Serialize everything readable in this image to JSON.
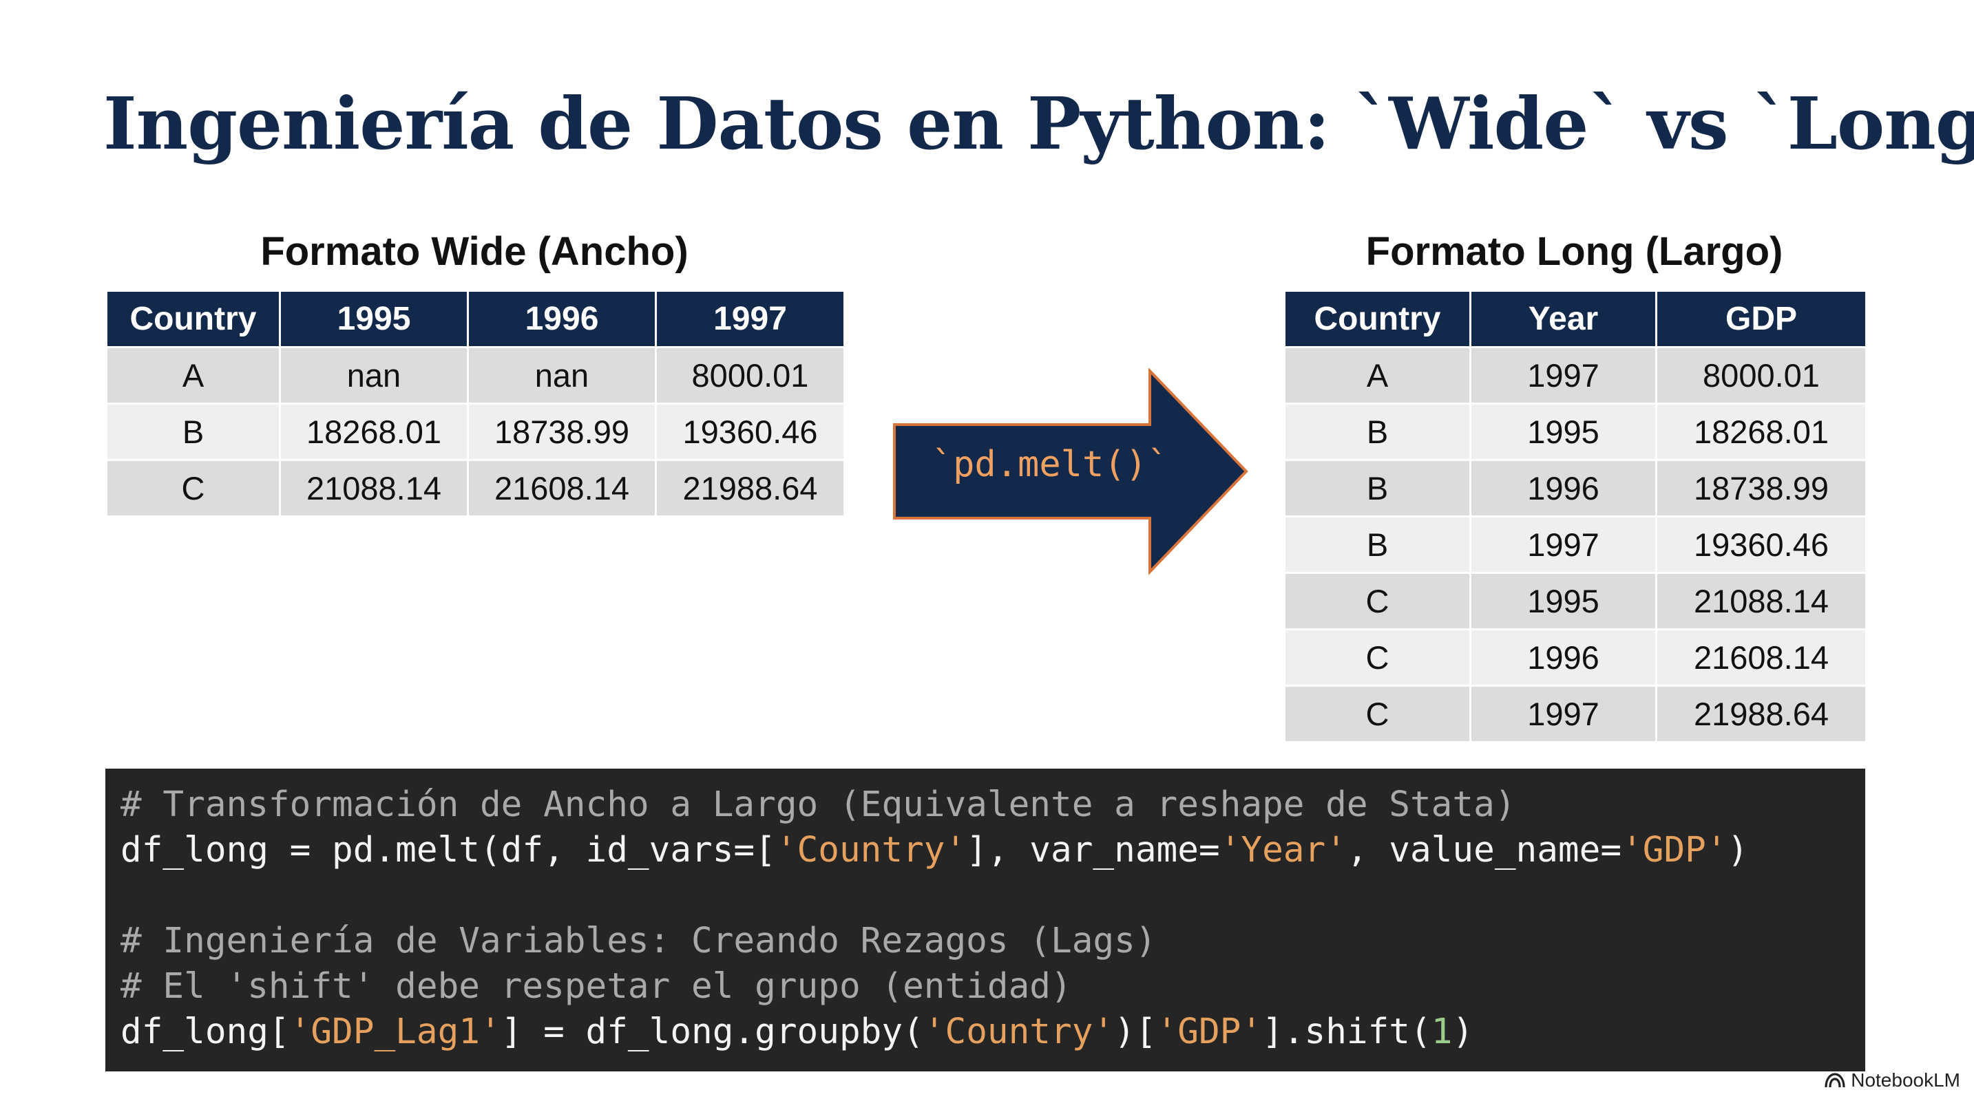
{
  "title": "Ingeniería de Datos en Python: `Wide` vs `Long`",
  "wide": {
    "heading": "Formato Wide (Ancho)",
    "columns": [
      "Country",
      "1995",
      "1996",
      "1997"
    ],
    "rows": [
      [
        "A",
        "nan",
        "nan",
        "8000.01"
      ],
      [
        "B",
        "18268.01",
        "18738.99",
        "19360.46"
      ],
      [
        "C",
        "21088.14",
        "21608.14",
        "21988.64"
      ]
    ]
  },
  "arrow_label": "`pd.melt()`",
  "long": {
    "heading": "Formato Long (Largo)",
    "columns": [
      "Country",
      "Year",
      "GDP"
    ],
    "rows": [
      [
        "A",
        "1997",
        "8000.01"
      ],
      [
        "B",
        "1995",
        "18268.01"
      ],
      [
        "B",
        "1996",
        "18738.99"
      ],
      [
        "B",
        "1997",
        "19360.46"
      ],
      [
        "C",
        "1995",
        "21088.14"
      ],
      [
        "C",
        "1996",
        "21608.14"
      ],
      [
        "C",
        "1997",
        "21988.64"
      ]
    ]
  },
  "code": {
    "line1": "# Transformación de Ancho a Largo (Equivalente a reshape de Stata)",
    "line2": {
      "p1": "df_long = pd.melt(df, id_vars=[",
      "s1": "'Country'",
      "p2": "], var_name=",
      "s2": "'Year'",
      "p3": ", value_name=",
      "s3": "'GDP'",
      "p4": ")"
    },
    "line4": "# Ingeniería de Variables: Creando Rezagos (Lags)",
    "line5": "# El 'shift' debe respetar el grupo (entidad)",
    "line6": {
      "p1": "df_long[",
      "s1": "'GDP_Lag1'",
      "p2": "] = df_long.groupby(",
      "s2": "'Country'",
      "p3": ")[",
      "s3": "'GDP'",
      "p4": "].shift(",
      "n1": "1",
      "p5": ")"
    }
  },
  "brand": "NotebookLM",
  "colors": {
    "navy": "#13294b",
    "arrow_border": "#d9743a",
    "code_bg": "#252525",
    "string": "#e7a15f",
    "comment": "#a9a9a9",
    "number": "#9ccc8a"
  }
}
